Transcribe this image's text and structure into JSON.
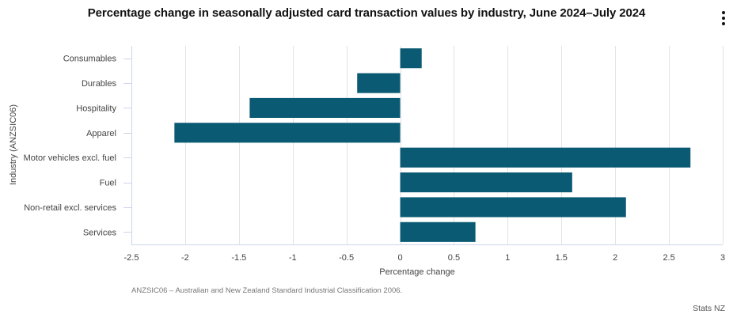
{
  "title": "Percentage change in seasonally adjusted card transaction values by industry, June 2024–July 2024",
  "menu": {
    "icon": "kebab-menu-icon",
    "label": "Chart menu"
  },
  "note": "ANZSIC06 – Australian and New Zealand Standard Industrial Classification 2006.",
  "credit": "Stats NZ",
  "colors": {
    "bar": "#0b5a73",
    "grid": "#e3e3e3",
    "axis": "#ccd6eb",
    "text": "#444444"
  },
  "chart_data": {
    "type": "bar",
    "orientation": "horizontal",
    "title": "Percentage change in seasonally adjusted card transaction values by industry, June 2024–July 2024",
    "xlabel": "Percentage change",
    "ylabel": "Industry (ANZSIC06)",
    "categories": [
      "Consumables",
      "Durables",
      "Hospitality",
      "Apparel",
      "Motor vehicles excl. fuel",
      "Fuel",
      "Non-retail excl. services",
      "Services"
    ],
    "values": [
      0.2,
      -0.4,
      -1.4,
      -2.1,
      2.7,
      1.6,
      2.1,
      0.7
    ],
    "xlim": [
      -2.5,
      3
    ],
    "xticks": [
      -2.5,
      -2,
      -1.5,
      -1,
      -0.5,
      0,
      0.5,
      1,
      1.5,
      2,
      2.5,
      3
    ],
    "xtick_labels": [
      "-2.5",
      "-2",
      "-1.5",
      "-1",
      "-0.5",
      "0",
      "0.5",
      "1",
      "1.5",
      "2",
      "2.5",
      "3"
    ],
    "grid": true,
    "legend": "none"
  }
}
